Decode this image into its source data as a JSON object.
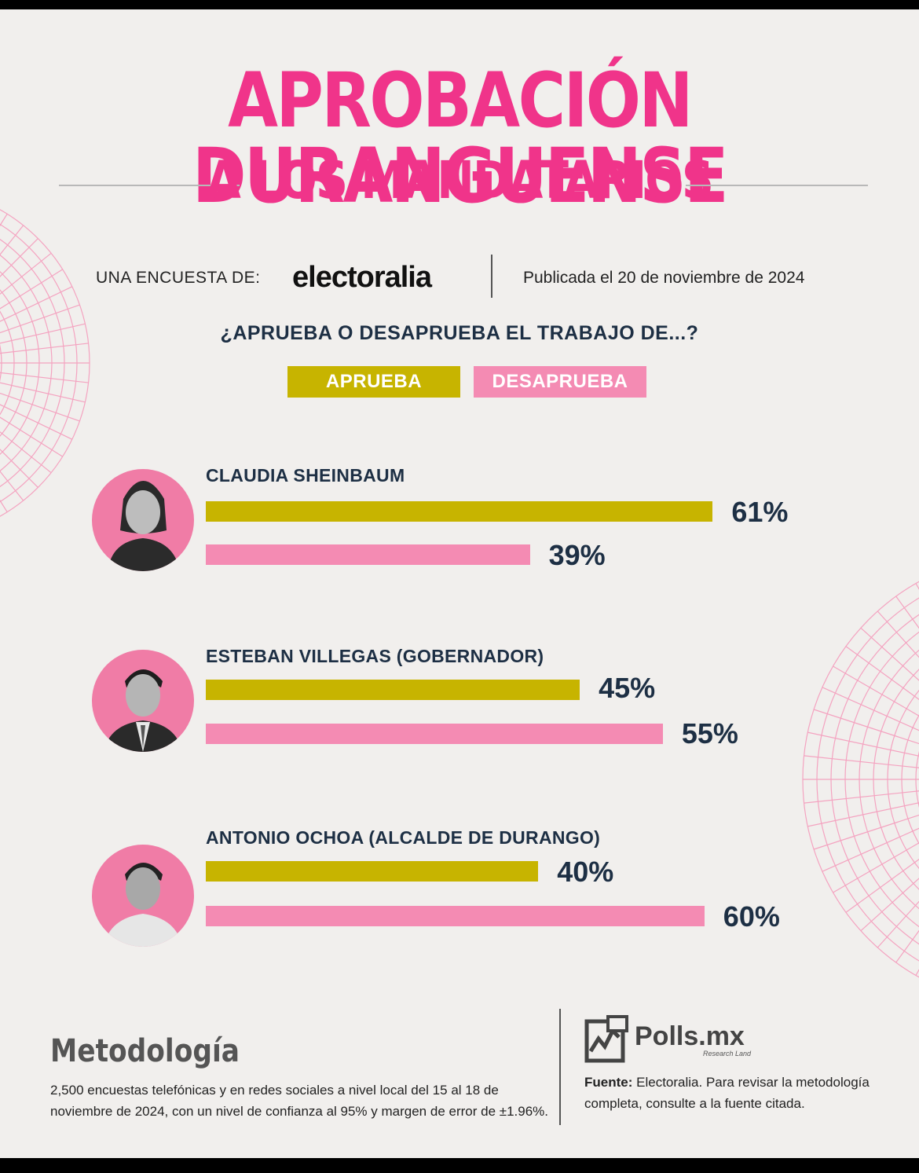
{
  "header": {
    "title_line1": "APROBACIÓN DURANGUENSE",
    "title_line2": "A LOS MANDATARIOS",
    "survey_label": "UNA ENCUESTA DE:",
    "brand": "electoralia",
    "published": "Publicada el 20 de noviembre de 2024"
  },
  "chart_data": {
    "type": "bar",
    "title": "¿APRUEBA O DESAPRUEBA EL TRABAJO DE...?",
    "legend": "top-center",
    "categories": [
      "CLAUDIA SHEINBAUM",
      "ESTEBAN VILLEGAS (GOBERNADOR)",
      "ANTONIO OCHOA (ALCALDE DE DURANGO)"
    ],
    "series": [
      {
        "name": "APRUEBA",
        "values": [
          61,
          45,
          40
        ],
        "labels": [
          "61%",
          "45%",
          "40%"
        ],
        "color": "#c7b400"
      },
      {
        "name": "DESAPRUEBA",
        "values": [
          39,
          55,
          60
        ],
        "labels": [
          "39%",
          "55%",
          "60%"
        ],
        "color": "#f48bb3"
      }
    ],
    "xlim": [
      0,
      100
    ]
  },
  "colors": {
    "accent": "#f0348a",
    "navy": "#1d2f44",
    "approve": "#c7b400",
    "disapprove": "#f48bb3",
    "avatar_bg": "#f07ca6"
  },
  "footer": {
    "method_title": "Metodología",
    "method_text": "2,500 encuestas telefónicas y en redes sociales a nivel local del 15 al 18 de noviembre de 2024, con un nivel de confianza al 95% y margen de error de ±1.96%.",
    "logo_name": "Polls.mx",
    "logo_sub": "Research Land",
    "source_label": "Fuente:",
    "source_text": "Electoralia. Para revisar la metodología completa, consulte a la fuente citada."
  }
}
